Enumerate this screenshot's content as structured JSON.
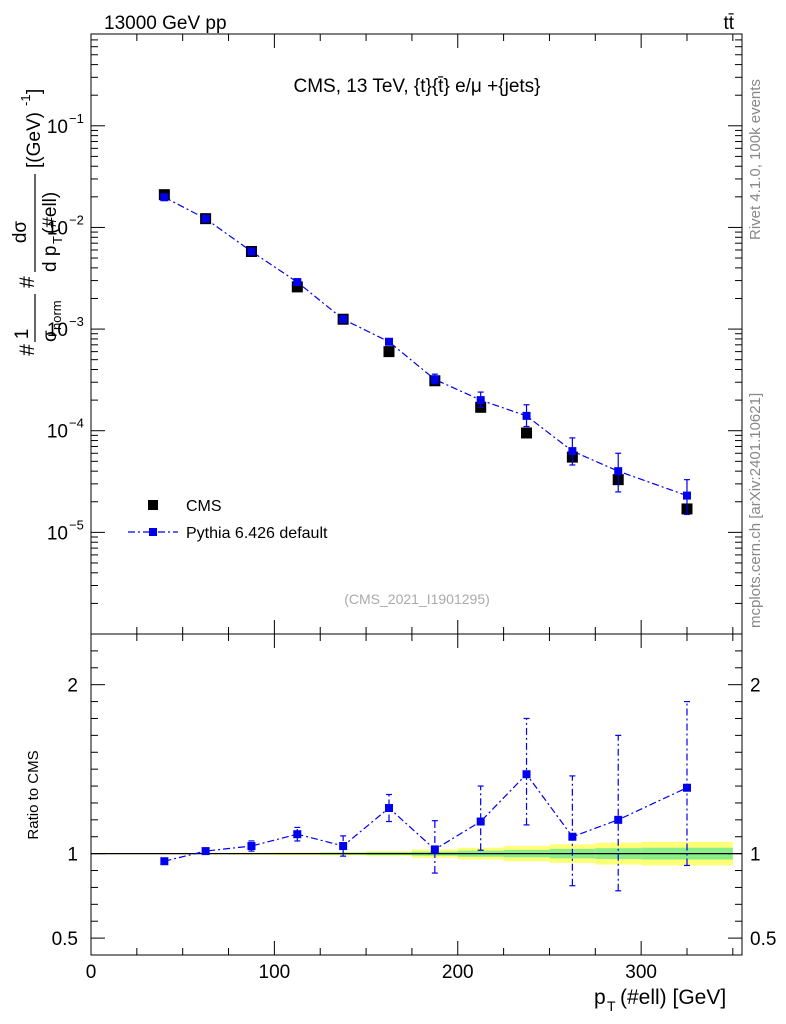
{
  "header": {
    "left_label": "13000 GeV pp",
    "right_label": "tt̄"
  },
  "side_labels": {
    "rivet": "Rivet 4.1.0,  100k events",
    "mcplots": "mcplots.cern.ch [arXiv:2401.10621]"
  },
  "chart_data": [
    {
      "panel": "main",
      "type": "scatter",
      "title": "CMS, 13 TeV, {t}{t̄} e/μ +{jets}",
      "watermark": "(CMS_2021_I1901295)",
      "ylabel_parts": {
        "hash1": "#",
        "one": "1",
        "sigma_norm": "σ",
        "norm_sub": "norm",
        "hash2": "#",
        "dsigma": "dσ",
        "d_pt": "d p",
        "pt_sub": "T",
        "pt_arg": "(#ell)",
        "unit": "[(GeV)",
        "unit_exp": "-1",
        "unit_close": "]"
      },
      "yscale": "log",
      "ylim": [
        1e-06,
        0.8
      ],
      "xlim": [
        0,
        355
      ],
      "yticks": [
        {
          "value": 1e-05,
          "base": "10",
          "exp": "−5"
        },
        {
          "value": 0.0001,
          "base": "10",
          "exp": "−4"
        },
        {
          "value": 0.001,
          "base": "10",
          "exp": "−3"
        },
        {
          "value": 0.01,
          "base": "10",
          "exp": "−2"
        },
        {
          "value": 0.1,
          "base": "10",
          "exp": "−1"
        }
      ],
      "x": [
        40,
        62.5,
        87.5,
        112.5,
        137.5,
        162.5,
        187.5,
        212.5,
        237.5,
        262.5,
        287.5,
        325
      ],
      "series": [
        {
          "name": "CMS",
          "marker": "square",
          "color": "#000000",
          "values": [
            0.021,
            0.0122,
            0.0058,
            0.0026,
            0.00125,
            0.0006,
            0.00031,
            0.00017,
            9.5e-05,
            5.5e-05,
            3.3e-05,
            1.7e-05
          ]
        },
        {
          "name": "Pythia 6.426 default",
          "marker": "square",
          "color": "#0000ee",
          "line": "dash-dot",
          "values": [
            0.0198,
            0.0122,
            0.0058,
            0.0029,
            0.00125,
            0.00075,
            0.00032,
            0.0002,
            0.00014,
            6.3e-05,
            4e-05,
            2.3e-05
          ],
          "err_low": [
            0.0006,
            0.0004,
            0.0002,
            0.00012,
            6e-05,
            4e-05,
            3e-05,
            3e-05,
            3e-05,
            1.7e-05,
            1.5e-05,
            8e-06
          ],
          "err_high": [
            0.0006,
            0.0004,
            0.0002,
            0.00012,
            6e-05,
            5e-05,
            4e-05,
            4e-05,
            4e-05,
            2.2e-05,
            2e-05,
            1e-05
          ]
        }
      ]
    },
    {
      "panel": "ratio",
      "type": "scatter",
      "ylabel": "Ratio to CMS",
      "xlabel_parts": {
        "p": "p",
        "sub": "T",
        "rest": "(#ell) [GeV]"
      },
      "ylim": [
        0.4,
        2.3
      ],
      "xlim": [
        0,
        355
      ],
      "yticks": [
        0.5,
        1,
        2
      ],
      "ytick_labels": [
        "0.5",
        "1",
        "2"
      ],
      "xticks": [
        0,
        100,
        200,
        300
      ],
      "xtick_labels": [
        "0",
        "100",
        "200",
        "300"
      ],
      "x": [
        40,
        62.5,
        87.5,
        112.5,
        137.5,
        162.5,
        187.5,
        212.5,
        237.5,
        262.5,
        287.5,
        325
      ],
      "series": [
        {
          "name": "Pythia 6.426 default",
          "color": "#0000ee",
          "values": [
            0.955,
            1.015,
            1.045,
            1.115,
            1.045,
            1.27,
            1.025,
            1.19,
            1.47,
            1.1,
            1.2,
            1.39
          ],
          "err_low": [
            0.01,
            0.01,
            0.03,
            0.04,
            0.06,
            0.08,
            0.14,
            0.17,
            0.3,
            0.29,
            0.42,
            0.46
          ],
          "err_high": [
            0.01,
            0.01,
            0.03,
            0.04,
            0.06,
            0.08,
            0.17,
            0.21,
            0.33,
            0.36,
            0.5,
            0.51
          ]
        }
      ],
      "bands": {
        "x_edges": [
          0,
          50,
          75,
          100,
          125,
          150,
          175,
          200,
          225,
          250,
          275,
          300,
          350
        ],
        "yellow_halfwidth": [
          0.004,
          0.004,
          0.006,
          0.008,
          0.01,
          0.015,
          0.025,
          0.035,
          0.045,
          0.055,
          0.065,
          0.07
        ],
        "green_halfwidth": [
          0.002,
          0.002,
          0.003,
          0.004,
          0.006,
          0.008,
          0.012,
          0.018,
          0.022,
          0.028,
          0.032,
          0.035
        ],
        "yellow_color": "#ffff77",
        "green_color": "#88ee88"
      }
    }
  ]
}
